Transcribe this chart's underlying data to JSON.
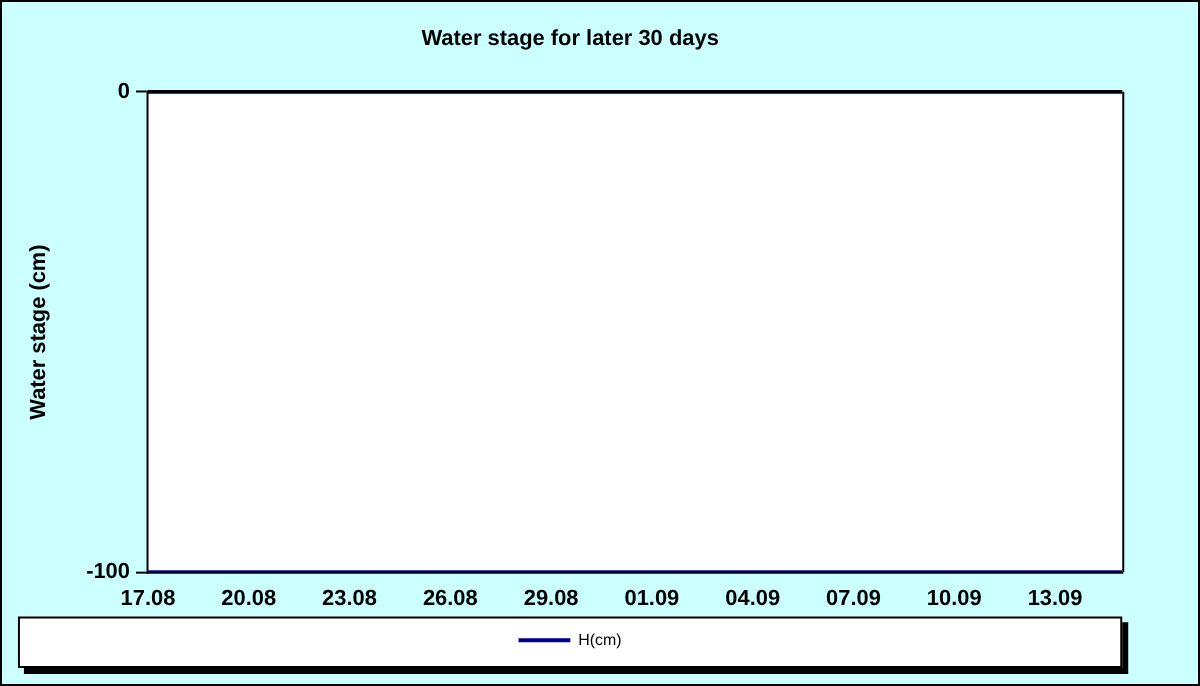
{
  "chart_data": {
    "type": "line",
    "title": "Water stage for later 30 days",
    "ylabel": "Water stage (cm)",
    "categories": [
      "17.08",
      null,
      null,
      "20.08",
      null,
      null,
      "23.08",
      null,
      null,
      "26.08",
      null,
      null,
      "29.08",
      null,
      null,
      "01.09",
      null,
      null,
      "04.09",
      null,
      null,
      "07.09",
      null,
      null,
      "10.09",
      null,
      null,
      "13.09",
      null,
      null
    ],
    "series": [
      {
        "name": "H(cm)",
        "color": "#000080",
        "values": [
          -100,
          -100,
          -100,
          -100,
          -100,
          -100,
          -100,
          -100,
          -100,
          -100,
          -100,
          -100,
          -100,
          -100,
          -100,
          -100,
          -100,
          -100,
          -100,
          -100,
          -100,
          -100,
          -100,
          -100,
          -100,
          -100,
          -100,
          -100,
          -100,
          -100
        ]
      }
    ],
    "ylim": [
      -100,
      0
    ],
    "yticks": [
      -100,
      0
    ],
    "grid": false,
    "legend": "bottom",
    "marker": "none",
    "line_style": "solid"
  }
}
